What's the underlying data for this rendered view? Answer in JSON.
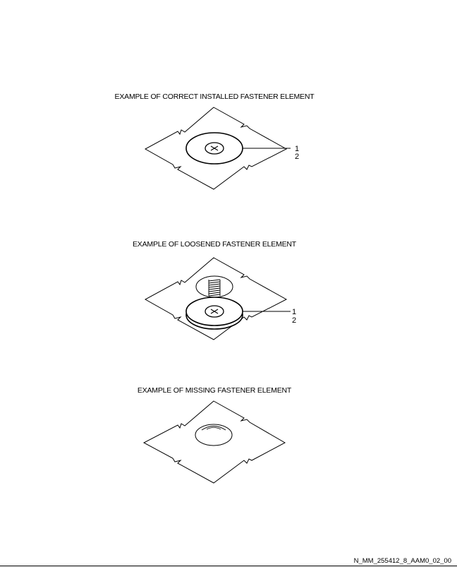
{
  "figures": [
    {
      "caption": "EXAMPLE OF CORRECT INSTALLED FASTENER ELEMENT",
      "callouts": [
        "1",
        "2"
      ]
    },
    {
      "caption": "EXAMPLE OF LOOSENED FASTENER ELEMENT",
      "callouts": [
        "1",
        "2"
      ]
    },
    {
      "caption": "EXAMPLE OF MISSING FASTENER ELEMENT",
      "callouts": []
    }
  ],
  "reference_id": "N_MM_255412_8_AAM0_02_00"
}
